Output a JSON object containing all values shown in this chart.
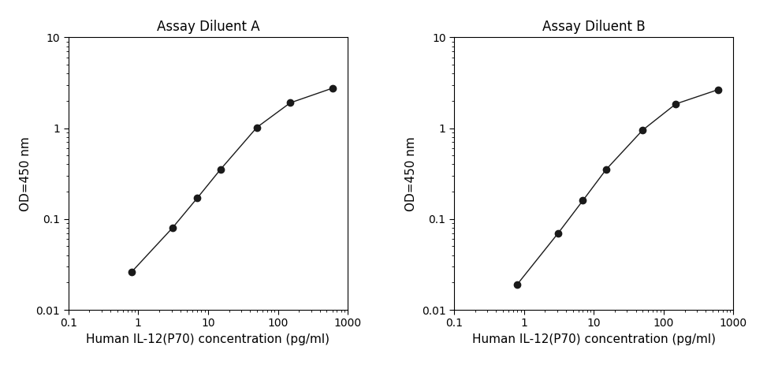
{
  "panel_A": {
    "title": "Assay Diluent A",
    "x": [
      0.8,
      3.1,
      7,
      15,
      50,
      150,
      600
    ],
    "y": [
      0.026,
      0.08,
      0.17,
      0.35,
      1.02,
      1.9,
      2.75
    ],
    "xlabel": "Human IL-12(P70) concentration (pg/ml)",
    "ylabel": "OD=450 nm",
    "xlim": [
      0.1,
      1000
    ],
    "ylim": [
      0.01,
      10
    ]
  },
  "panel_B": {
    "title": "Assay Diluent B",
    "x": [
      0.8,
      3.1,
      7,
      15,
      50,
      150,
      600
    ],
    "y": [
      0.019,
      0.07,
      0.16,
      0.35,
      0.95,
      1.85,
      2.65
    ],
    "xlabel": "Human IL-12(P70) concentration (pg/ml)",
    "ylabel": "OD=450 nm",
    "xlim": [
      0.1,
      1000
    ],
    "ylim": [
      0.01,
      10
    ]
  },
  "line_color": "#1a1a1a",
  "marker_color": "#1a1a1a",
  "marker_size": 6,
  "line_width": 1.0,
  "title_fontsize": 12,
  "label_fontsize": 11,
  "tick_fontsize": 10,
  "background_color": "#ffffff"
}
